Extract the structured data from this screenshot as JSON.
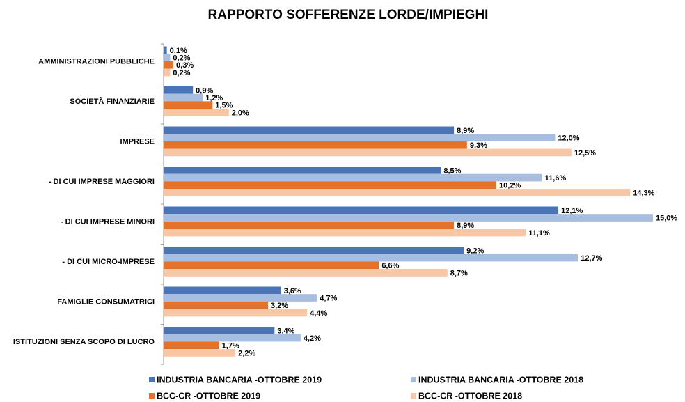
{
  "chart_data": {
    "type": "bar",
    "orientation": "horizontal",
    "title": "RAPPORTO SOFFERENZE LORDE/IMPIEGHI",
    "categories": [
      "AMMINISTRAZIONI PUBBLICHE",
      "SOCIETÀ FINANZIARIE",
      "IMPRESE",
      "- DI CUI IMPRESE MAGGIORI",
      "- DI CUI IMPRESE MINORI",
      "- DI CUI MICRO-IMPRESE",
      "FAMIGLIE CONSUMATRICI",
      "ISTITUZIONI SENZA SCOPO DI LUCRO"
    ],
    "xlim": [
      0,
      15
    ],
    "legend": "bottom",
    "series": [
      {
        "name": "INDUSTRIA BANCARIA -OTTOBRE 2019",
        "color": "#4a74b5",
        "values": [
          0.1,
          0.9,
          8.9,
          8.5,
          12.1,
          9.2,
          3.6,
          3.4
        ],
        "value_labels": [
          "0,1%",
          "0,9%",
          "8,9%",
          "8,5%",
          "12,1%",
          "9,2%",
          "3,6%",
          "3,4%"
        ]
      },
      {
        "name": "INDUSTRIA BANCARIA -OTTOBRE 2018",
        "color": "#a8bee0",
        "values": [
          0.2,
          1.2,
          12.0,
          11.6,
          15.0,
          12.7,
          4.7,
          4.2
        ],
        "value_labels": [
          "0,2%",
          "1,2%",
          "12,0%",
          "11,6%",
          "15,0%",
          "12,7%",
          "4,7%",
          "4,2%"
        ]
      },
      {
        "name": "BCC-CR -OTTOBRE 2019",
        "color": "#e5722a",
        "values": [
          0.3,
          1.5,
          9.3,
          10.2,
          8.9,
          6.6,
          3.2,
          1.7
        ],
        "value_labels": [
          "0,3%",
          "1,5%",
          "9,3%",
          "10,2%",
          "8,9%",
          "6,6%",
          "3,2%",
          "1,7%"
        ]
      },
      {
        "name": "BCC-CR -OTTOBRE 2018",
        "color": "#f7c6a5",
        "values": [
          0.2,
          2.0,
          12.5,
          14.3,
          11.1,
          8.7,
          4.4,
          2.2
        ],
        "value_labels": [
          "0,2%",
          "2,0%",
          "12,5%",
          "14,3%",
          "11,1%",
          "8,7%",
          "4,4%",
          "2,2%"
        ]
      }
    ]
  }
}
